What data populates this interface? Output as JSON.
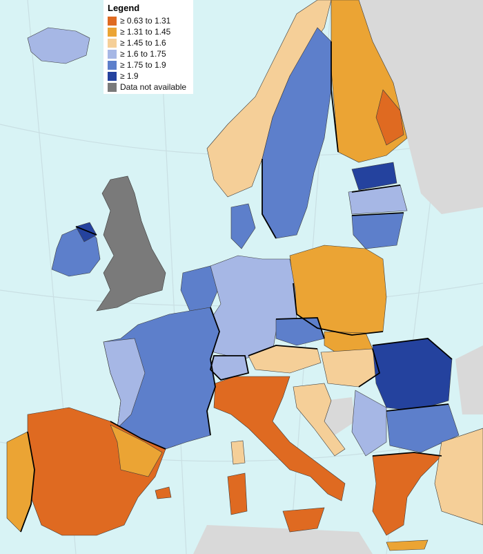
{
  "legend": {
    "title": "Legend",
    "items": [
      {
        "label": "≥ 0.63 to 1.31",
        "color": "#df6a21"
      },
      {
        "label": "≥ 1.31 to 1.45",
        "color": "#eba434"
      },
      {
        "label": "≥ 1.45 to 1.6",
        "color": "#f5cf98"
      },
      {
        "label": "≥ 1.6 to 1.75",
        "color": "#a6b7e5"
      },
      {
        "label": "≥ 1.75 to 1.9",
        "color": "#5d7fcb"
      },
      {
        "label": "≥ 1.9",
        "color": "#24429e"
      },
      {
        "label": "Data not available",
        "color": "#7a7a7a"
      }
    ]
  },
  "colors": {
    "sea": "#d8f3f5",
    "non_eu_land": "#d9d9d9",
    "border": "#000000"
  }
}
